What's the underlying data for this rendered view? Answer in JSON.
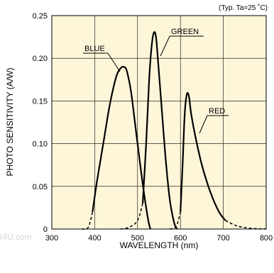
{
  "watermark": "t4U.com",
  "chart_data": {
    "type": "line",
    "title": "",
    "note": "(Typ. Ta=25 ˚C)",
    "xlabel": "WAVELENGTH (nm)",
    "ylabel": "PHOTO SENSITIVITY (A/W)",
    "xlim": [
      300,
      800
    ],
    "ylim": [
      0,
      0.25
    ],
    "xticks": [
      300,
      400,
      500,
      600,
      700,
      800
    ],
    "yticks": [
      0,
      0.05,
      0.1,
      0.15,
      0.2,
      0.25
    ],
    "xtick_labels": [
      "300",
      "400",
      "500",
      "600",
      "700",
      "800"
    ],
    "ytick_labels": [
      "0",
      "0.05",
      "0.10",
      "0.15",
      "0.20",
      "0.25"
    ],
    "grid": true,
    "plot_background": "#fdf6d9",
    "line_color": "#000000",
    "series": [
      {
        "name": "BLUE",
        "dashed": {
          "x": [
            370,
            385,
            395
          ],
          "y": [
            0,
            0.002,
            0.02
          ]
        },
        "solid": {
          "x": [
            395,
            405,
            420,
            435,
            450,
            460,
            468,
            475,
            485,
            495,
            505,
            515,
            525,
            530
          ],
          "y": [
            0.02,
            0.055,
            0.1,
            0.145,
            0.178,
            0.188,
            0.19,
            0.185,
            0.16,
            0.12,
            0.08,
            0.042,
            0.01,
            0
          ]
        }
      },
      {
        "name": "GREEN",
        "dashed": {
          "x": [
            460,
            480,
            500,
            512
          ],
          "y": [
            0,
            0.002,
            0.01,
            0.03
          ]
        },
        "solid": {
          "x": [
            512,
            520,
            527,
            533,
            538,
            543,
            548,
            555,
            565,
            575,
            585,
            592
          ],
          "y": [
            0.03,
            0.1,
            0.175,
            0.215,
            0.23,
            0.225,
            0.195,
            0.15,
            0.085,
            0.035,
            0.008,
            0
          ]
        }
      },
      {
        "name": "RED",
        "dashed": {
          "x": [
            575,
            590,
            600
          ],
          "y": [
            0,
            0.003,
            0.02
          ]
        },
        "solid": {
          "x": [
            600,
            605,
            610,
            615,
            620,
            625,
            635,
            650,
            670,
            690,
            705
          ],
          "y": [
            0.02,
            0.075,
            0.135,
            0.158,
            0.155,
            0.135,
            0.108,
            0.075,
            0.043,
            0.02,
            0.01
          ]
        },
        "tail": {
          "x": [
            705,
            730,
            760,
            800
          ],
          "y": [
            0.01,
            0.004,
            0.001,
            0
          ]
        }
      }
    ]
  }
}
